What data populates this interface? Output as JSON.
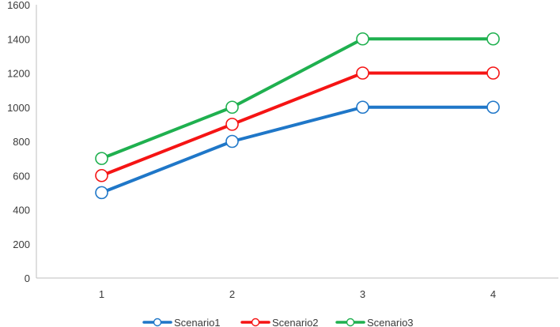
{
  "chart_data": {
    "type": "line",
    "title": "",
    "xlabel": "",
    "ylabel": "",
    "x": [
      "1",
      "2",
      "3",
      "4"
    ],
    "ylim": [
      0,
      1600
    ],
    "yticks": [
      0,
      200,
      400,
      600,
      800,
      1000,
      1200,
      1400,
      1600
    ],
    "grid": false,
    "legend_position": "bottom",
    "series": [
      {
        "name": "Scenario1",
        "values": [
          500,
          800,
          1000,
          1000
        ],
        "color": "#1F77C8"
      },
      {
        "name": "Scenario2",
        "values": [
          600,
          900,
          1200,
          1200
        ],
        "color": "#F51414"
      },
      {
        "name": "Scenario3",
        "values": [
          700,
          1000,
          1400,
          1400
        ],
        "color": "#1FB04F"
      }
    ]
  }
}
